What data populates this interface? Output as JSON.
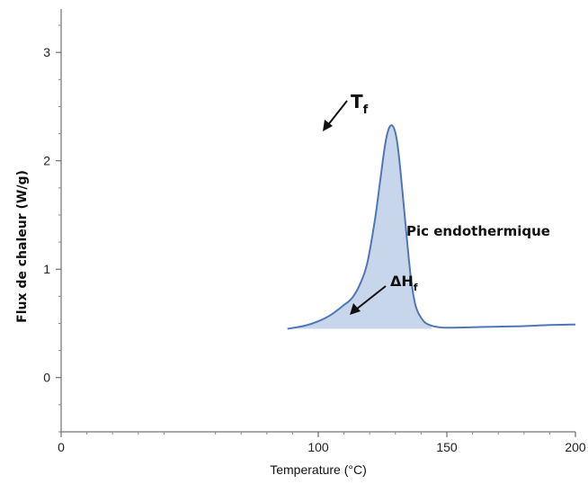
{
  "chart_data": {
    "type": "area",
    "title": "",
    "xlabel": "Temperature (°C)",
    "ylabel": "Flux de chaleur (W/g)",
    "xlim": [
      0,
      200
    ],
    "ylim": [
      -0.5,
      3.4
    ],
    "x_ticks": [
      "0",
      "100",
      "150",
      "200"
    ],
    "x_tick_values": [
      0,
      100,
      150,
      200
    ],
    "y_ticks": [
      "0",
      "1",
      "2",
      "3"
    ],
    "y_tick_values": [
      0,
      1,
      2,
      3
    ],
    "grid": false,
    "series": [
      {
        "x": [
          88,
          95,
          100,
          105,
          110,
          113,
          116,
          119,
          122,
          124,
          126,
          127.5,
          129,
          130.5,
          132,
          134,
          136,
          138,
          141,
          144,
          147,
          150,
          160,
          170,
          180,
          190,
          200
        ],
        "y": [
          0.45,
          0.48,
          0.52,
          0.58,
          0.67,
          0.73,
          0.85,
          1.05,
          1.45,
          1.8,
          2.15,
          2.3,
          2.32,
          2.2,
          1.9,
          1.4,
          0.92,
          0.65,
          0.52,
          0.48,
          0.465,
          0.46,
          0.465,
          0.47,
          0.475,
          0.485,
          0.49
        ],
        "color": "#4f76b5",
        "fill": "#c8d6ec",
        "fill_baseline": 0.45,
        "fill_range": [
          88,
          144
        ]
      }
    ],
    "annotations": [
      {
        "label": "T",
        "subscript": "f",
        "x": 129,
        "y": 2.32
      },
      {
        "label": "ΔH",
        "subscript": "f",
        "x": 133,
        "y": 0.6
      },
      {
        "text": "Pic endothermique"
      }
    ]
  }
}
